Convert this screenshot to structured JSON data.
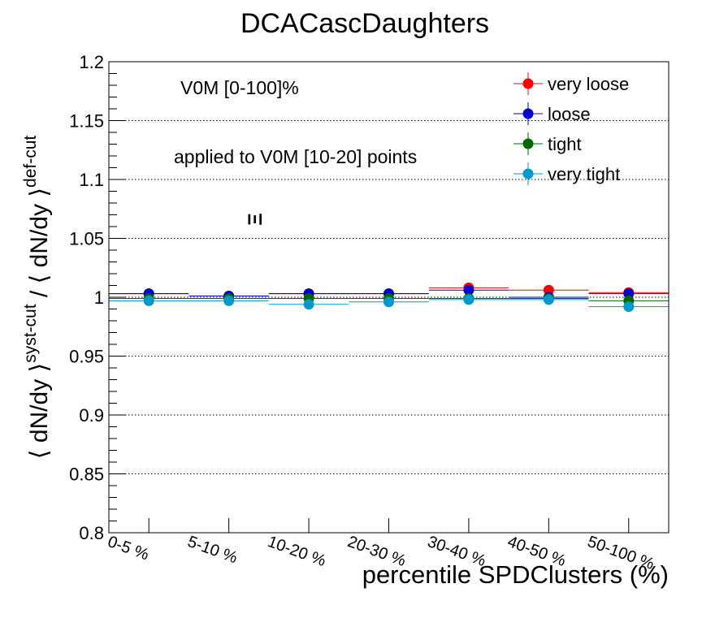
{
  "chart_data": {
    "type": "scatter",
    "title": "DCACascDaughters",
    "xlabel": "percentile SPDClusters (%)",
    "ylabel": "⟨ dN/dy ⟩^syst-cut / ⟨ dN/dy ⟩^def-cut",
    "ylabel_parts": {
      "open": "⟨ dN/dy ⟩",
      "sup1": "syst-cut",
      "mid": " / ⟨ dN/dy ⟩",
      "sup2": "def-cut"
    },
    "annotations": [
      "V0M [0-100]%",
      "applied to V0M [10-20] points",
      "Ξ"
    ],
    "categories": [
      "0-5 %",
      "5-10 %",
      "10-20 %",
      "20-30 %",
      "30-40 %",
      "40-50 %",
      "50-100 %"
    ],
    "ylim": [
      0.8,
      1.2
    ],
    "yticks": [
      "0.8",
      "0.85",
      "0.9",
      "0.95",
      "1",
      "1.05",
      "1.1",
      "1.15",
      "1.2"
    ],
    "grid": "horizontal dotted",
    "legend_position": "top-right",
    "series": [
      {
        "name": "very loose",
        "color": "#ff0000",
        "values": [
          1.003,
          1.001,
          1.003,
          1.003,
          1.008,
          1.006,
          1.004
        ]
      },
      {
        "name": "loose",
        "color": "#0000cc",
        "values": [
          1.003,
          1.001,
          1.003,
          1.003,
          1.006,
          1.0,
          1.003
        ]
      },
      {
        "name": "tight",
        "color": "#006600",
        "values": [
          0.999,
          0.999,
          0.999,
          0.999,
          0.999,
          0.999,
          0.997
        ]
      },
      {
        "name": "very tight",
        "color": "#0099cc",
        "values": [
          0.997,
          0.997,
          0.994,
          0.996,
          0.998,
          0.998,
          0.992
        ]
      }
    ]
  }
}
